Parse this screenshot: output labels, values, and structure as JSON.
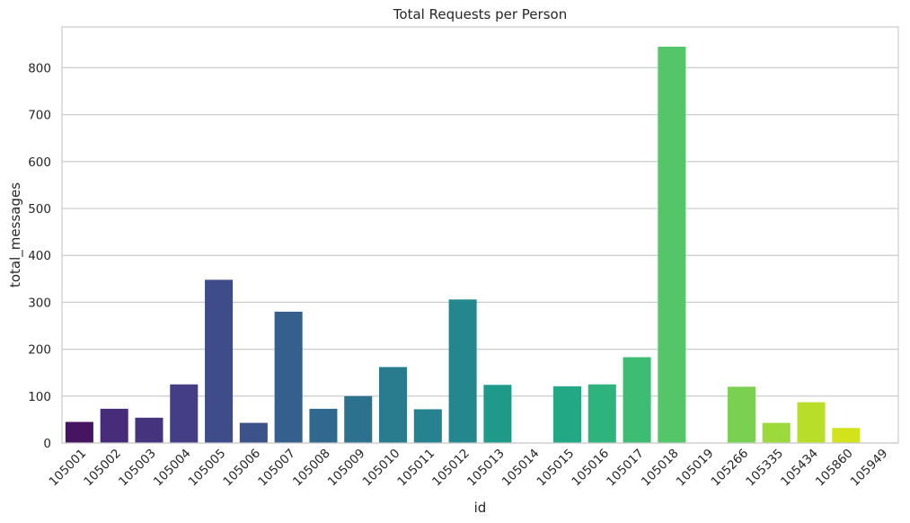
{
  "chart_data": {
    "type": "bar",
    "title": "Total Requests per Person",
    "xlabel": "id",
    "ylabel": "total_messages",
    "categories": [
      "105001",
      "105002",
      "105003",
      "105004",
      "105005",
      "105006",
      "105007",
      "105008",
      "105009",
      "105010",
      "105011",
      "105012",
      "105013",
      "105014",
      "105015",
      "105016",
      "105017",
      "105018",
      "105019",
      "105266",
      "105335",
      "105434",
      "105860",
      "105949"
    ],
    "values": [
      45,
      73,
      54,
      125,
      348,
      43,
      280,
      73,
      100,
      162,
      72,
      306,
      124,
      0,
      121,
      125,
      183,
      845,
      0,
      120,
      43,
      87,
      32,
      0
    ],
    "colors": [
      "#461461",
      "#472c7a",
      "#46337e",
      "#433e85",
      "#3e4c8a",
      "#3b528b",
      "#35608d",
      "#31688e",
      "#2c728e",
      "#287c8e",
      "#26828e",
      "#24878e",
      "#1f9a8a",
      "#1fa188",
      "#22a884",
      "#2eb37c",
      "#3dbc74",
      "#54c568",
      "#6ccd5a",
      "#7ad151",
      "#9bd93c",
      "#b8de29",
      "#d2e21b",
      "#e8e419"
    ],
    "yticks": [
      0,
      100,
      200,
      300,
      400,
      500,
      600,
      700,
      800
    ],
    "ylim": [
      0,
      887
    ],
    "grid": "y"
  }
}
